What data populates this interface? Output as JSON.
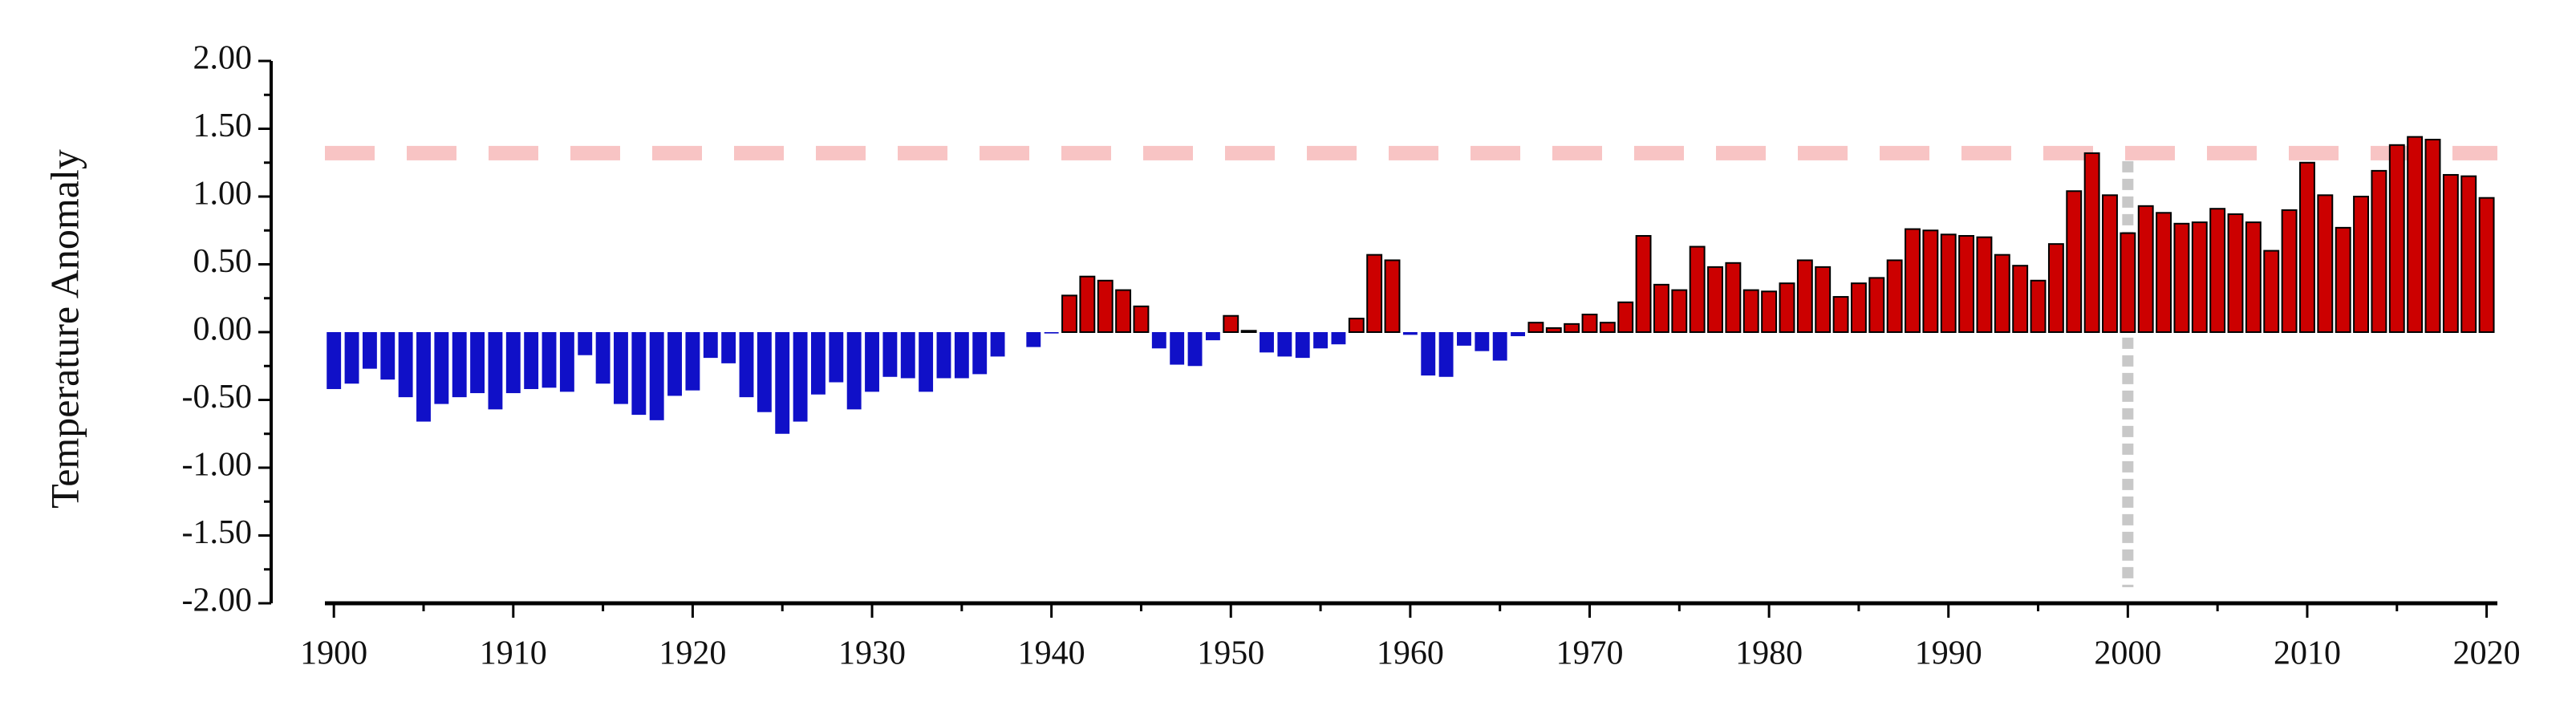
{
  "chart_data": {
    "type": "bar",
    "y_label": "Temperature Anomaly",
    "x": [
      1900,
      1901,
      1902,
      1903,
      1904,
      1905,
      1906,
      1907,
      1908,
      1909,
      1910,
      1911,
      1912,
      1913,
      1914,
      1915,
      1916,
      1917,
      1918,
      1919,
      1920,
      1921,
      1922,
      1923,
      1924,
      1925,
      1926,
      1927,
      1928,
      1929,
      1930,
      1931,
      1932,
      1933,
      1934,
      1935,
      1936,
      1937,
      1938,
      1939,
      1940,
      1941,
      1942,
      1943,
      1944,
      1945,
      1946,
      1947,
      1948,
      1949,
      1950,
      1951,
      1952,
      1953,
      1954,
      1955,
      1956,
      1957,
      1958,
      1959,
      1960,
      1961,
      1962,
      1963,
      1964,
      1965,
      1966,
      1967,
      1968,
      1969,
      1970,
      1971,
      1972,
      1973,
      1974,
      1975,
      1976,
      1977,
      1978,
      1979,
      1980,
      1981,
      1982,
      1983,
      1984,
      1985,
      1986,
      1987,
      1988,
      1989,
      1990,
      1991,
      1992,
      1993,
      1994,
      1995,
      1996,
      1997,
      1998,
      1999,
      2000,
      2001,
      2002,
      2003,
      2004,
      2005,
      2006,
      2007,
      2008,
      2009,
      2010,
      2011,
      2012,
      2013,
      2014,
      2015,
      2016,
      2017,
      2018,
      2019,
      2020
    ],
    "values": [
      -0.42,
      -0.38,
      -0.27,
      -0.35,
      -0.48,
      -0.66,
      -0.53,
      -0.48,
      -0.45,
      -0.57,
      -0.45,
      -0.42,
      -0.41,
      -0.44,
      -0.17,
      -0.38,
      -0.53,
      -0.61,
      -0.65,
      -0.47,
      -0.43,
      -0.19,
      -0.23,
      -0.48,
      -0.59,
      -0.75,
      -0.66,
      -0.46,
      -0.37,
      -0.57,
      -0.44,
      -0.33,
      -0.34,
      -0.44,
      -0.34,
      -0.34,
      -0.31,
      -0.18,
      0.0,
      -0.11,
      -0.01,
      0.27,
      0.41,
      0.38,
      0.31,
      0.19,
      -0.12,
      -0.24,
      -0.25,
      -0.06,
      0.12,
      0.01,
      -0.15,
      -0.18,
      -0.19,
      -0.12,
      -0.09,
      0.1,
      0.57,
      0.53,
      -0.02,
      -0.32,
      -0.33,
      -0.1,
      -0.14,
      -0.21,
      -0.03,
      0.07,
      0.03,
      0.06,
      0.13,
      0.07,
      0.22,
      0.71,
      0.35,
      0.31,
      0.63,
      0.48,
      0.51,
      0.31,
      0.3,
      0.36,
      0.53,
      0.48,
      0.26,
      0.36,
      0.4,
      0.53,
      0.76,
      0.75,
      0.72,
      0.71,
      0.7,
      0.57,
      0.49,
      0.38,
      0.65,
      1.04,
      1.32,
      1.01,
      0.73,
      0.93,
      0.88,
      0.8,
      0.81,
      0.91,
      0.87,
      0.81,
      0.6,
      0.9,
      1.25,
      1.01,
      0.77,
      1.0,
      1.19,
      1.38,
      1.44,
      1.42,
      1.16,
      1.15,
      0.99
    ],
    "positive_color": "#cc0000",
    "negative_color": "#1010c8",
    "xlim": [
      1899.5,
      2020.6
    ],
    "xticks": [
      1900,
      1910,
      1920,
      1930,
      1940,
      1950,
      1960,
      1970,
      1980,
      1990,
      2000,
      2010,
      2020
    ],
    "xminorticks": [
      1905,
      1915,
      1925,
      1935,
      1945,
      1955,
      1965,
      1975,
      1985,
      1995,
      2005,
      2015
    ],
    "ylim": [
      -2,
      2
    ],
    "yticks": [
      {
        "value": -2,
        "label": "-2.00"
      },
      {
        "value": -1.5,
        "label": "-1.50"
      },
      {
        "value": -1,
        "label": "-1.00"
      },
      {
        "value": -0.5,
        "label": "-0.50"
      },
      {
        "value": 0,
        "label": "0.00"
      },
      {
        "value": 0.5,
        "label": "0.50"
      },
      {
        "value": 1,
        "label": "1.00"
      },
      {
        "value": 1.5,
        "label": "1.50"
      },
      {
        "value": 2,
        "label": "2.00"
      }
    ],
    "yminorticks": [
      -1.75,
      -1.25,
      -0.75,
      -0.25,
      0.25,
      0.75,
      1.25,
      1.75
    ],
    "hline": {
      "value": 1.32,
      "color": "#f8c4c4"
    },
    "vline": {
      "x": 2000,
      "color": "#c8c8c8"
    }
  }
}
